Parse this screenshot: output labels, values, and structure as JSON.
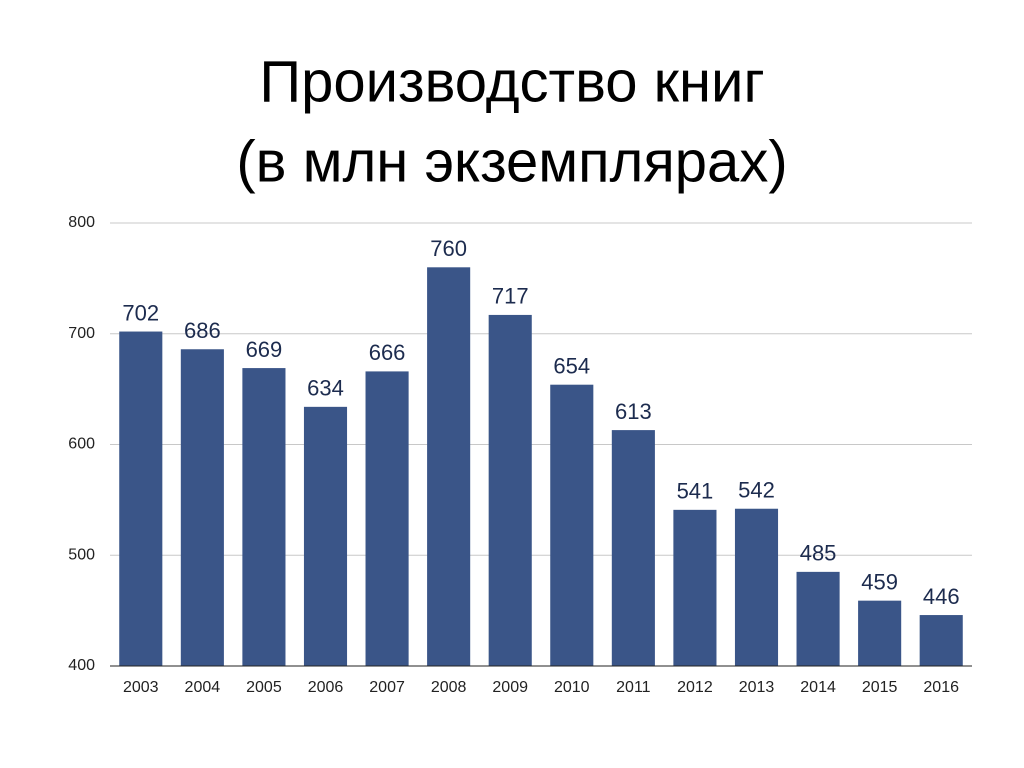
{
  "chart_data": {
    "type": "bar",
    "title": "Производство книг",
    "subtitle": "(в млн экземплярах)",
    "categories": [
      "2003",
      "2004",
      "2005",
      "2006",
      "2007",
      "2008",
      "2009",
      "2010",
      "2011",
      "2012",
      "2013",
      "2014",
      "2015",
      "2016"
    ],
    "values": [
      702,
      686,
      669,
      634,
      666,
      760,
      717,
      654,
      613,
      541,
      542,
      485,
      459,
      446
    ],
    "color": "#3a5588",
    "ylim": [
      400,
      800
    ],
    "yticks": [
      400,
      500,
      600,
      700,
      800
    ],
    "grid": true
  }
}
